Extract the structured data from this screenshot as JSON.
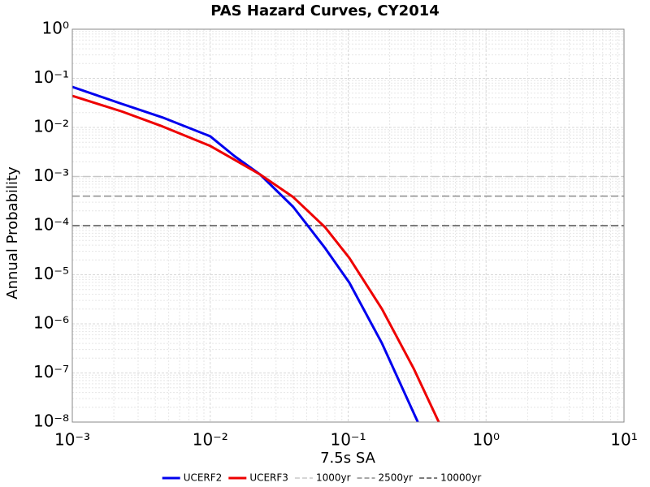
{
  "chart_data": {
    "type": "line",
    "title": "PAS Hazard Curves, CY2014",
    "x_label": "7.5s SA",
    "y_label": "Annual Probability",
    "log_x": true,
    "log_y": true,
    "grid": true,
    "legend_position": "bottom",
    "xlim": [
      0.001,
      10
    ],
    "ylim": [
      1e-08,
      1
    ],
    "xticks": [
      {
        "value": 0.001,
        "label": "10⁻³"
      },
      {
        "value": 0.01,
        "label": "10⁻²"
      },
      {
        "value": 0.1,
        "label": "10⁻¹"
      },
      {
        "value": 1,
        "label": "10⁰"
      },
      {
        "value": 10,
        "label": "10¹"
      }
    ],
    "yticks": [
      {
        "value": 1e-08,
        "label": "10⁻⁸"
      },
      {
        "value": 1e-07,
        "label": "10⁻⁷"
      },
      {
        "value": 1e-06,
        "label": "10⁻⁶"
      },
      {
        "value": 1e-05,
        "label": "10⁻⁵"
      },
      {
        "value": 0.0001,
        "label": "10⁻⁴"
      },
      {
        "value": 0.001,
        "label": "10⁻³"
      },
      {
        "value": 0.01,
        "label": "10⁻²"
      },
      {
        "value": 0.1,
        "label": "10⁻¹"
      },
      {
        "value": 1,
        "label": "10⁰"
      }
    ],
    "series": [
      {
        "name": "UCERF2",
        "color": "#0000ee",
        "x": [
          0.001,
          0.0023,
          0.0045,
          0.01,
          0.015,
          0.023,
          0.04,
          0.068,
          0.102,
          0.176,
          0.32
        ],
        "values": [
          0.067,
          0.03,
          0.016,
          0.0066,
          0.0026,
          0.0011,
          0.00024,
          3.5e-05,
          6.9e-06,
          4e-07,
          1e-08
        ]
      },
      {
        "name": "UCERF3",
        "color": "#ee0000",
        "x": [
          0.001,
          0.0023,
          0.0045,
          0.01,
          0.015,
          0.023,
          0.04,
          0.068,
          0.102,
          0.176,
          0.3,
          0.454
        ],
        "values": [
          0.044,
          0.021,
          0.0105,
          0.0042,
          0.0022,
          0.0011,
          0.00038,
          9.3e-05,
          2.2e-05,
          2e-06,
          1.2e-07,
          1e-08
        ]
      }
    ],
    "reference_lines": [
      {
        "name": "1000yr",
        "color": "#c8c8c8",
        "value": 0.001
      },
      {
        "name": "2500yr",
        "color": "#8c8c8c",
        "value": 0.0004
      },
      {
        "name": "10000yr",
        "color": "#505050",
        "value": 0.0001
      }
    ]
  }
}
